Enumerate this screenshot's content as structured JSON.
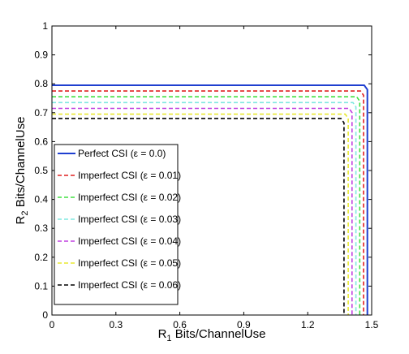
{
  "chart_data": {
    "type": "line",
    "title": "",
    "xlabel": {
      "main": "R",
      "sub": "1",
      "rest": " Bits/ChannelUse"
    },
    "ylabel": {
      "main": "R",
      "sub": "2",
      "rest": " Bits/ChannelUse"
    },
    "xlim": [
      0,
      1.5
    ],
    "ylim": [
      0,
      1
    ],
    "xticks": [
      "0",
      "0.3",
      "0.6",
      "0.9",
      "1.2",
      "1.5"
    ],
    "xtick_values": [
      0,
      0.3,
      0.6,
      0.9,
      1.2,
      1.5
    ],
    "yticks": [
      "0",
      "0.1",
      "0.2",
      "0.3",
      "0.4",
      "0.5",
      "0.6",
      "0.7",
      "0.8",
      "0.9",
      "1"
    ],
    "ytick_values": [
      0,
      0.1,
      0.2,
      0.3,
      0.4,
      0.5,
      0.6,
      0.7,
      0.8,
      0.9,
      1
    ],
    "grid": false,
    "legend_position": "lower-left",
    "series": [
      {
        "name": "Perfect CSI (ε = 0.0)",
        "color": "#1f3fd0",
        "dash": "solid",
        "x": [
          0,
          1.465,
          1.48,
          1.48
        ],
        "y": [
          0.795,
          0.795,
          0.78,
          0
        ]
      },
      {
        "name": "Imperfect CSI (ε = 0.01)",
        "color": "#e02020",
        "dash": "dashed",
        "x": [
          0,
          1.448,
          1.462,
          1.462
        ],
        "y": [
          0.775,
          0.775,
          0.76,
          0
        ]
      },
      {
        "name": "Imperfect CSI (ε = 0.02)",
        "color": "#40e040",
        "dash": "dashed",
        "x": [
          0,
          1.43,
          1.444,
          1.444
        ],
        "y": [
          0.755,
          0.755,
          0.74,
          0
        ]
      },
      {
        "name": "Imperfect CSI (ε = 0.03)",
        "color": "#80e8e0",
        "dash": "dashed",
        "x": [
          0,
          1.412,
          1.426,
          1.426
        ],
        "y": [
          0.735,
          0.735,
          0.72,
          0
        ]
      },
      {
        "name": "Imperfect CSI (ε = 0.04)",
        "color": "#c040e0",
        "dash": "dashed",
        "x": [
          0,
          1.394,
          1.408,
          1.408
        ],
        "y": [
          0.715,
          0.715,
          0.7,
          0
        ]
      },
      {
        "name": "Imperfect CSI (ε = 0.05)",
        "color": "#e8e830",
        "dash": "dashed",
        "x": [
          0,
          1.376,
          1.39,
          1.39
        ],
        "y": [
          0.695,
          0.695,
          0.68,
          0
        ]
      },
      {
        "name": "Imperfect CSI (ε = 0.06)",
        "color": "#000000",
        "dash": "dashed",
        "x": [
          0,
          1.356,
          1.37,
          1.37
        ],
        "y": [
          0.68,
          0.68,
          0.665,
          0
        ]
      }
    ]
  }
}
